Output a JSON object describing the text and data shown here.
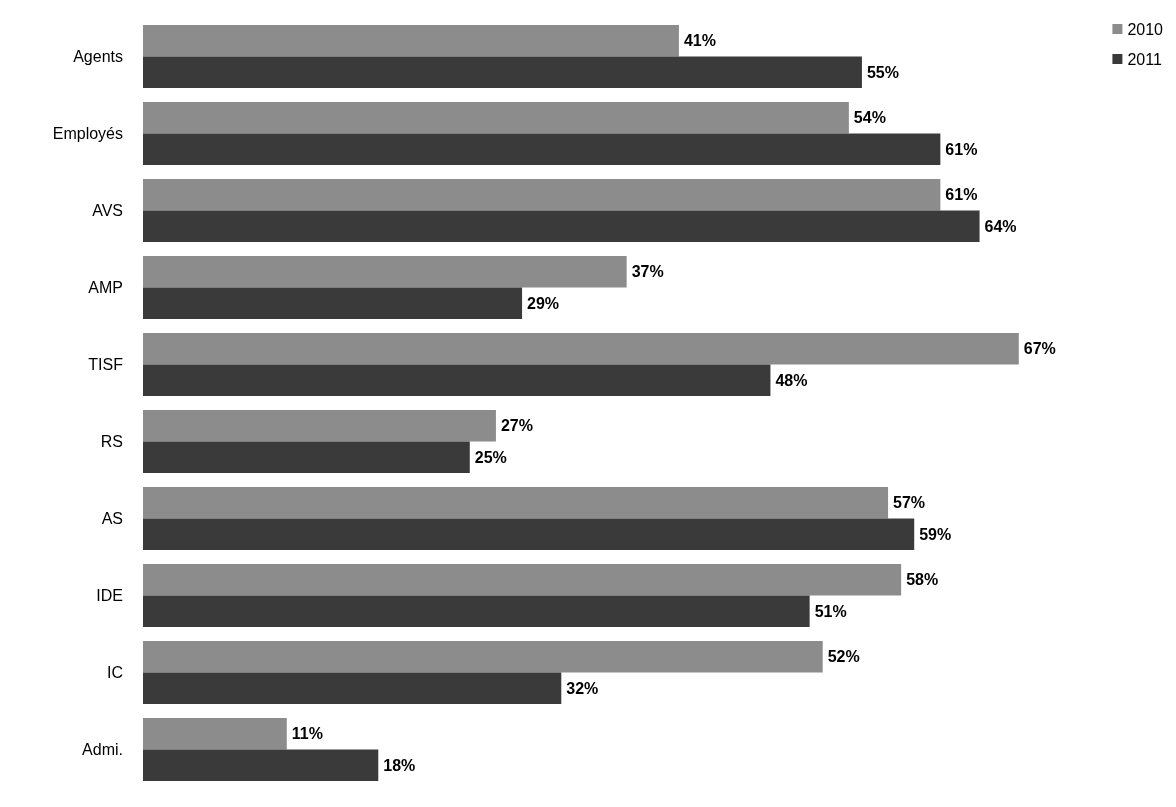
{
  "chart_data": {
    "type": "bar",
    "orientation": "horizontal",
    "legend": "top right",
    "categories": [
      "Agents",
      "Employés",
      "AVS",
      "AMP",
      "TISF",
      "RS",
      "AS",
      "IDE",
      "IC",
      "Admi."
    ],
    "series": [
      {
        "name": "2010",
        "color": "#8c8c8c",
        "values": [
          41,
          54,
          61,
          37,
          67,
          27,
          57,
          58,
          52,
          11
        ],
        "value_labels": [
          "41%",
          "54%",
          "61%",
          "37%",
          "67%",
          "27%",
          "57%",
          "58%",
          "52%",
          "11%"
        ]
      },
      {
        "name": "2011",
        "color": "#3a3a3a",
        "values": [
          55,
          61,
          64,
          29,
          48,
          25,
          59,
          51,
          32,
          18
        ],
        "value_labels": [
          "55%",
          "61%",
          "64%",
          "29%",
          "48%",
          "25%",
          "59%",
          "51%",
          "32%",
          "18%"
        ]
      }
    ]
  }
}
